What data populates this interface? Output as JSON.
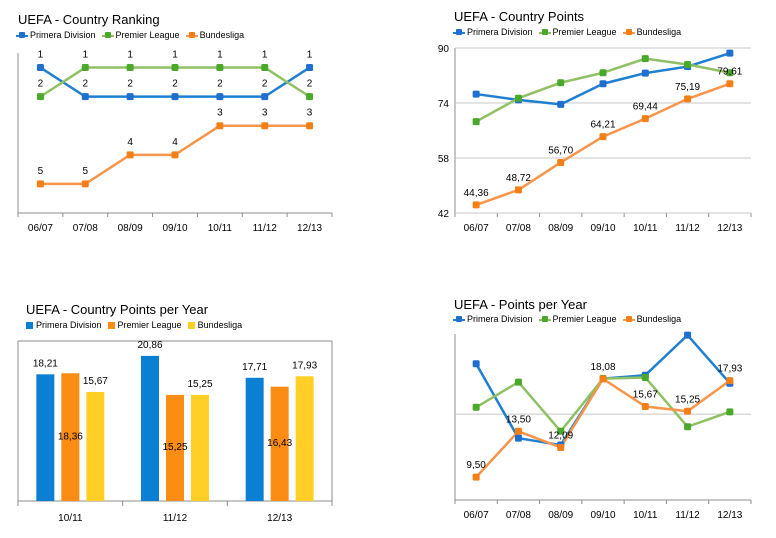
{
  "colors": {
    "primera": "#1f7fd1",
    "premier": "#8fc063",
    "bundesliga": "#f7954a",
    "primera_marker": "#1f6fd0",
    "premier_marker": "#4aa82a",
    "bundesliga_marker": "#f57f17",
    "bar_primera": "#0b7fd3",
    "bar_premier": "#fb8c14",
    "bar_bundesliga": "#ffcf25",
    "grid": "#c8c8c8",
    "axis": "#8c8c8c"
  },
  "chart_data": [
    {
      "id": "ranking",
      "type": "line",
      "title": "UEFA - Country Ranking",
      "categories": [
        "06/07",
        "07/08",
        "08/09",
        "09/10",
        "10/11",
        "11/12",
        "12/13"
      ],
      "ylim": [
        6,
        0.5
      ],
      "series": [
        {
          "name": "Primera Division",
          "key": "primera",
          "values": [
            1,
            2,
            2,
            2,
            2,
            2,
            1
          ],
          "labels": [
            "1",
            "2",
            "2",
            "2",
            "2",
            "2",
            "1"
          ],
          "label_pos": "above"
        },
        {
          "name": "Premier League",
          "key": "premier",
          "values": [
            2,
            1,
            1,
            1,
            1,
            1,
            2
          ],
          "labels": [
            "2",
            "1",
            "1",
            "1",
            "1",
            "1",
            "2"
          ],
          "label_pos": "above"
        },
        {
          "name": "Bundesliga",
          "key": "bundesliga",
          "values": [
            5,
            5,
            4,
            4,
            3,
            3,
            3
          ],
          "labels": [
            "5",
            "5",
            "4",
            "4",
            "3",
            "3",
            "3"
          ],
          "label_pos": "above"
        }
      ]
    },
    {
      "id": "points",
      "type": "line",
      "title": "UEFA - Country Points",
      "categories": [
        "06/07",
        "07/08",
        "08/09",
        "09/10",
        "10/11",
        "11/12",
        "12/13"
      ],
      "ylim": [
        42,
        90
      ],
      "yticks": [
        "42",
        "58",
        "74",
        "90"
      ],
      "series": [
        {
          "name": "Primera Division",
          "key": "primera",
          "values": [
            76.6,
            74.9,
            73.6,
            79.6,
            82.7,
            84.6,
            88.5
          ],
          "labels": []
        },
        {
          "name": "Premier League",
          "key": "premier",
          "values": [
            68.6,
            75.4,
            79.9,
            82.8,
            86.9,
            85.2,
            82.8
          ],
          "labels": []
        },
        {
          "name": "Bundesliga",
          "key": "bundesliga",
          "values": [
            44.36,
            48.72,
            56.7,
            64.21,
            69.44,
            75.19,
            79.61
          ],
          "labels": [
            "44,36",
            "48,72",
            "56,70",
            "64,21",
            "69,44",
            "75,19",
            "79,61"
          ],
          "label_pos": "above"
        }
      ]
    },
    {
      "id": "per_year",
      "type": "bar",
      "title": "UEFA - Country Points per Year",
      "categories": [
        "10/11",
        "11/12",
        "12/13"
      ],
      "ylim": [
        0,
        23
      ],
      "series": [
        {
          "name": "Primera Division",
          "key": "bar_primera",
          "values": [
            18.21,
            20.86,
            17.71
          ],
          "labels": [
            "18,21",
            "20,86",
            "17,71"
          ]
        },
        {
          "name": "Premier League",
          "key": "bar_premier",
          "values": [
            18.36,
            15.25,
            16.43
          ],
          "labels": [
            "18,36",
            "15,25",
            "16,43"
          ]
        },
        {
          "name": "Bundesliga",
          "key": "bar_bundesliga",
          "values": [
            15.67,
            15.25,
            17.93
          ],
          "labels": [
            "15,67",
            "15,25",
            "17,93"
          ]
        }
      ]
    },
    {
      "id": "points_per_year",
      "type": "line",
      "title": "UEFA - Points per Year",
      "categories": [
        "06/07",
        "07/08",
        "08/09",
        "09/10",
        "10/11",
        "11/12",
        "12/13"
      ],
      "ylim": [
        7.5,
        22.0
      ],
      "series": [
        {
          "name": "Primera Division",
          "key": "primera",
          "values": [
            19.4,
            12.9,
            12.3,
            18.1,
            18.4,
            21.9,
            17.7
          ],
          "labels": []
        },
        {
          "name": "Premier League",
          "key": "premier",
          "values": [
            15.6,
            17.8,
            13.5,
            18.1,
            18.2,
            13.9,
            15.2
          ],
          "labels": []
        },
        {
          "name": "Bundesliga",
          "key": "bundesliga",
          "values": [
            9.5,
            13.5,
            12.09,
            18.08,
            15.67,
            15.25,
            17.93
          ],
          "labels": [
            "9,50",
            "13,50",
            "12,09",
            "18,08",
            "15,67",
            "15,25",
            "17,93"
          ],
          "label_pos": "above"
        }
      ]
    }
  ]
}
